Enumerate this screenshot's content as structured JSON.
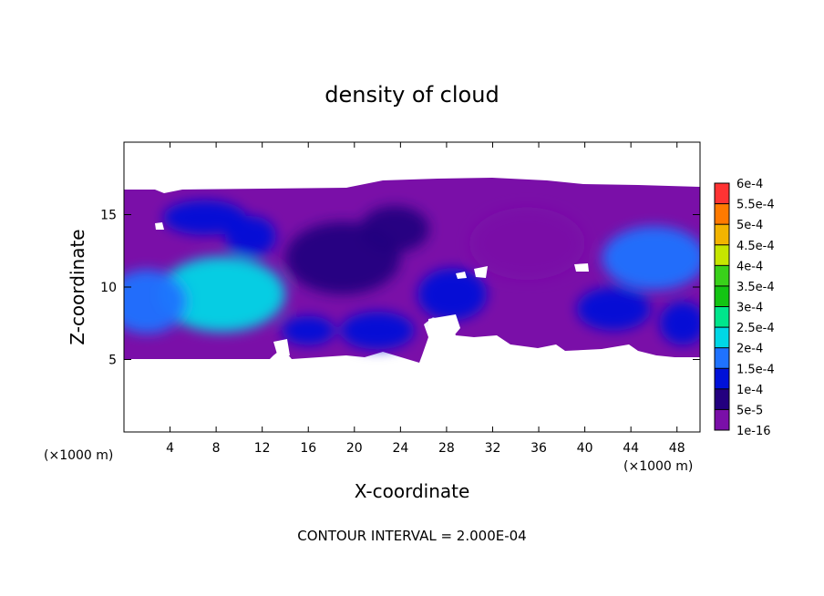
{
  "chart_data": {
    "type": "heatmap",
    "title": "density of cloud",
    "xlabel": "X-coordinate",
    "ylabel": "Z-coordinate",
    "x_unit_left": "(×1000 m)",
    "x_unit_right": "(×1000 m)",
    "footer": "CONTOUR INTERVAL = 2.000E-04",
    "xlim": [
      0,
      50
    ],
    "ylim": [
      0,
      20
    ],
    "xticks": [
      4,
      8,
      12,
      16,
      20,
      24,
      28,
      32,
      36,
      40,
      44,
      48
    ],
    "yticks": [
      5,
      10,
      15
    ],
    "grid": false,
    "colorbar": {
      "labels": [
        "1e-16",
        "5e-5",
        "1e-4",
        "1.5e-4",
        "2e-4",
        "2.5e-4",
        "3e-4",
        "3.5e-4",
        "4e-4",
        "4.5e-4",
        "5e-4",
        "5.5e-4",
        "6e-4"
      ],
      "colors": [
        "#7a0fa8",
        "#23007f",
        "#0011d8",
        "#1f72ff",
        "#00d7e6",
        "#00e68c",
        "#13c413",
        "#39d11a",
        "#c6e600",
        "#f2b400",
        "#ff7a00",
        "#ff3333",
        "#ff8a8a"
      ]
    },
    "cloud_base_z": 5,
    "cloud_top_z": 17,
    "blobs": [
      {
        "x": 8.5,
        "z": 9.5,
        "rx": 5.5,
        "rz": 2.6,
        "level": 4
      },
      {
        "x": 2.0,
        "z": 9.0,
        "rx": 3.5,
        "rz": 2.2,
        "level": 3
      },
      {
        "x": 7.0,
        "z": 14.8,
        "rx": 3.6,
        "rz": 1.2,
        "level": 2
      },
      {
        "x": 11.0,
        "z": 13.5,
        "rx": 2.2,
        "rz": 1.4,
        "level": 2
      },
      {
        "x": 16.0,
        "z": 7.0,
        "rx": 2.3,
        "rz": 1.0,
        "level": 2
      },
      {
        "x": 22.0,
        "z": 7.0,
        "rx": 3.2,
        "rz": 1.3,
        "level": 2
      },
      {
        "x": 23.5,
        "z": 14.0,
        "rx": 3.0,
        "rz": 1.6,
        "level": 1
      },
      {
        "x": 28.5,
        "z": 9.5,
        "rx": 3.0,
        "rz": 1.8,
        "level": 2
      },
      {
        "x": 46.0,
        "z": 12.0,
        "rx": 4.5,
        "rz": 2.2,
        "level": 3
      },
      {
        "x": 42.5,
        "z": 8.5,
        "rx": 3.2,
        "rz": 1.5,
        "level": 2
      },
      {
        "x": 48.5,
        "z": 7.5,
        "rx": 2.0,
        "rz": 1.5,
        "level": 2
      },
      {
        "x": 19.0,
        "z": 12.0,
        "rx": 5.0,
        "rz": 2.5,
        "level": 1
      },
      {
        "x": 35.0,
        "z": 13.0,
        "rx": 5.0,
        "rz": 2.5,
        "level": 0
      }
    ]
  }
}
